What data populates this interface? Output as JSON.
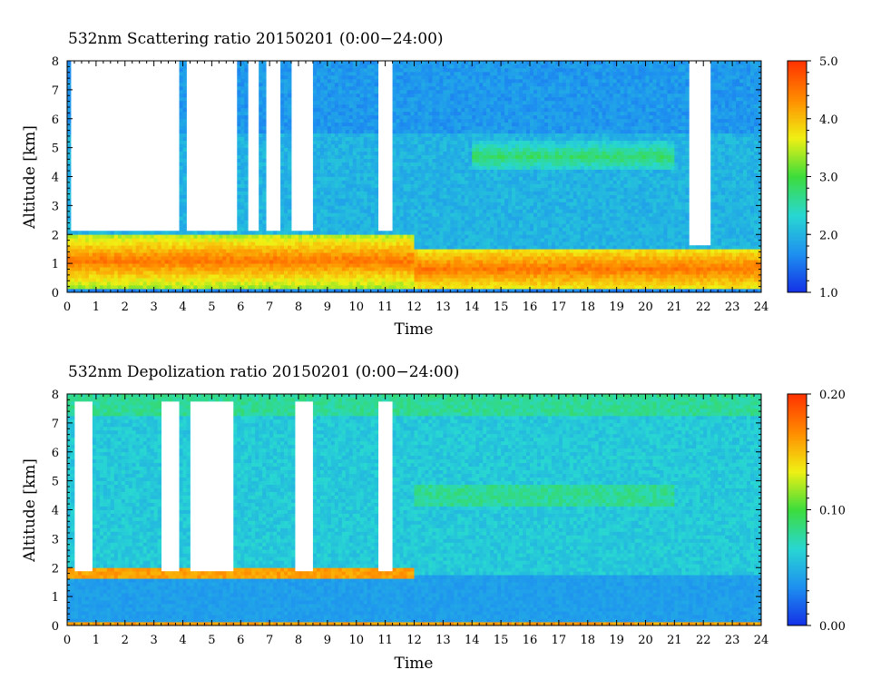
{
  "chart_data": [
    {
      "type": "heatmap",
      "title": "532nm Scattering ratio  20150201 (0:00−24:00)",
      "xlabel": "Time",
      "ylabel": "Altitude [km]",
      "x_ticks": [
        "0",
        "1",
        "2",
        "3",
        "4",
        "5",
        "6",
        "7",
        "8",
        "9",
        "10",
        "11",
        "12",
        "13",
        "14",
        "15",
        "16",
        "17",
        "18",
        "19",
        "20",
        "21",
        "22",
        "23",
        "24"
      ],
      "y_ticks": [
        "0",
        "1",
        "2",
        "3",
        "4",
        "5",
        "6",
        "7",
        "8"
      ],
      "xlim": [
        0,
        24
      ],
      "ylim": [
        0,
        8
      ],
      "colorbar": {
        "ticks": [
          "1.0",
          "2.0",
          "3.0",
          "4.0",
          "5.0"
        ],
        "range": [
          1.0,
          5.0
        ]
      },
      "field": {
        "background": 2.0,
        "aerosol_layer": {
          "top_km": 2.0,
          "top_km_after_12h": 1.5,
          "value": 4.5
        },
        "cloud_band": {
          "center_km": 4.7,
          "hours": [
            14,
            21
          ],
          "value": 2.8
        },
        "no_data_gaps": [
          [
            0.1,
            1.7
          ],
          [
            1.8,
            3.9
          ],
          [
            4.1,
            5.9
          ],
          [
            6.2,
            6.6
          ],
          [
            6.85,
            7.4
          ],
          [
            7.7,
            8.5
          ],
          [
            10.7,
            11.2
          ],
          [
            21.5,
            22.2
          ]
        ]
      },
      "colors": [
        "#1430e6",
        "#1e90f0",
        "#28d7d2",
        "#3cdc3c",
        "#f0f014",
        "#ff8c00",
        "#ff3200"
      ]
    },
    {
      "type": "heatmap",
      "title": "532nm Depolization ratio  20150201 (0:00−24:00)",
      "xlabel": "Time",
      "ylabel": "Altitude [km]",
      "x_ticks": [
        "0",
        "1",
        "2",
        "3",
        "4",
        "5",
        "6",
        "7",
        "8",
        "9",
        "10",
        "11",
        "12",
        "13",
        "14",
        "15",
        "16",
        "17",
        "18",
        "19",
        "20",
        "21",
        "22",
        "23",
        "24"
      ],
      "y_ticks": [
        "0",
        "1",
        "2",
        "3",
        "4",
        "5",
        "6",
        "7",
        "8"
      ],
      "xlim": [
        0,
        24
      ],
      "ylim": [
        0,
        8
      ],
      "colorbar": {
        "ticks": [
          "0.00",
          "0.10",
          "0.20"
        ],
        "range": [
          0.0,
          0.2
        ]
      },
      "field": {
        "background": 0.06,
        "aerosol_layer": {
          "top_km": 1.8,
          "value": 0.04
        },
        "layer_edge": {
          "altitude_km": 1.8,
          "value": 0.16
        },
        "cloud_band": {
          "center_km": 4.5,
          "hours": [
            12,
            21
          ],
          "value": 0.08
        },
        "no_data_gaps": [
          [
            0.2,
            0.9
          ],
          [
            3.3,
            3.9
          ],
          [
            4.2,
            5.8
          ],
          [
            7.9,
            8.5
          ],
          [
            10.7,
            11.2
          ]
        ]
      },
      "colors": [
        "#1430e6",
        "#1e90f0",
        "#28d7d2",
        "#3cdc3c",
        "#f0f014",
        "#ff8c00",
        "#ff3200"
      ]
    }
  ]
}
